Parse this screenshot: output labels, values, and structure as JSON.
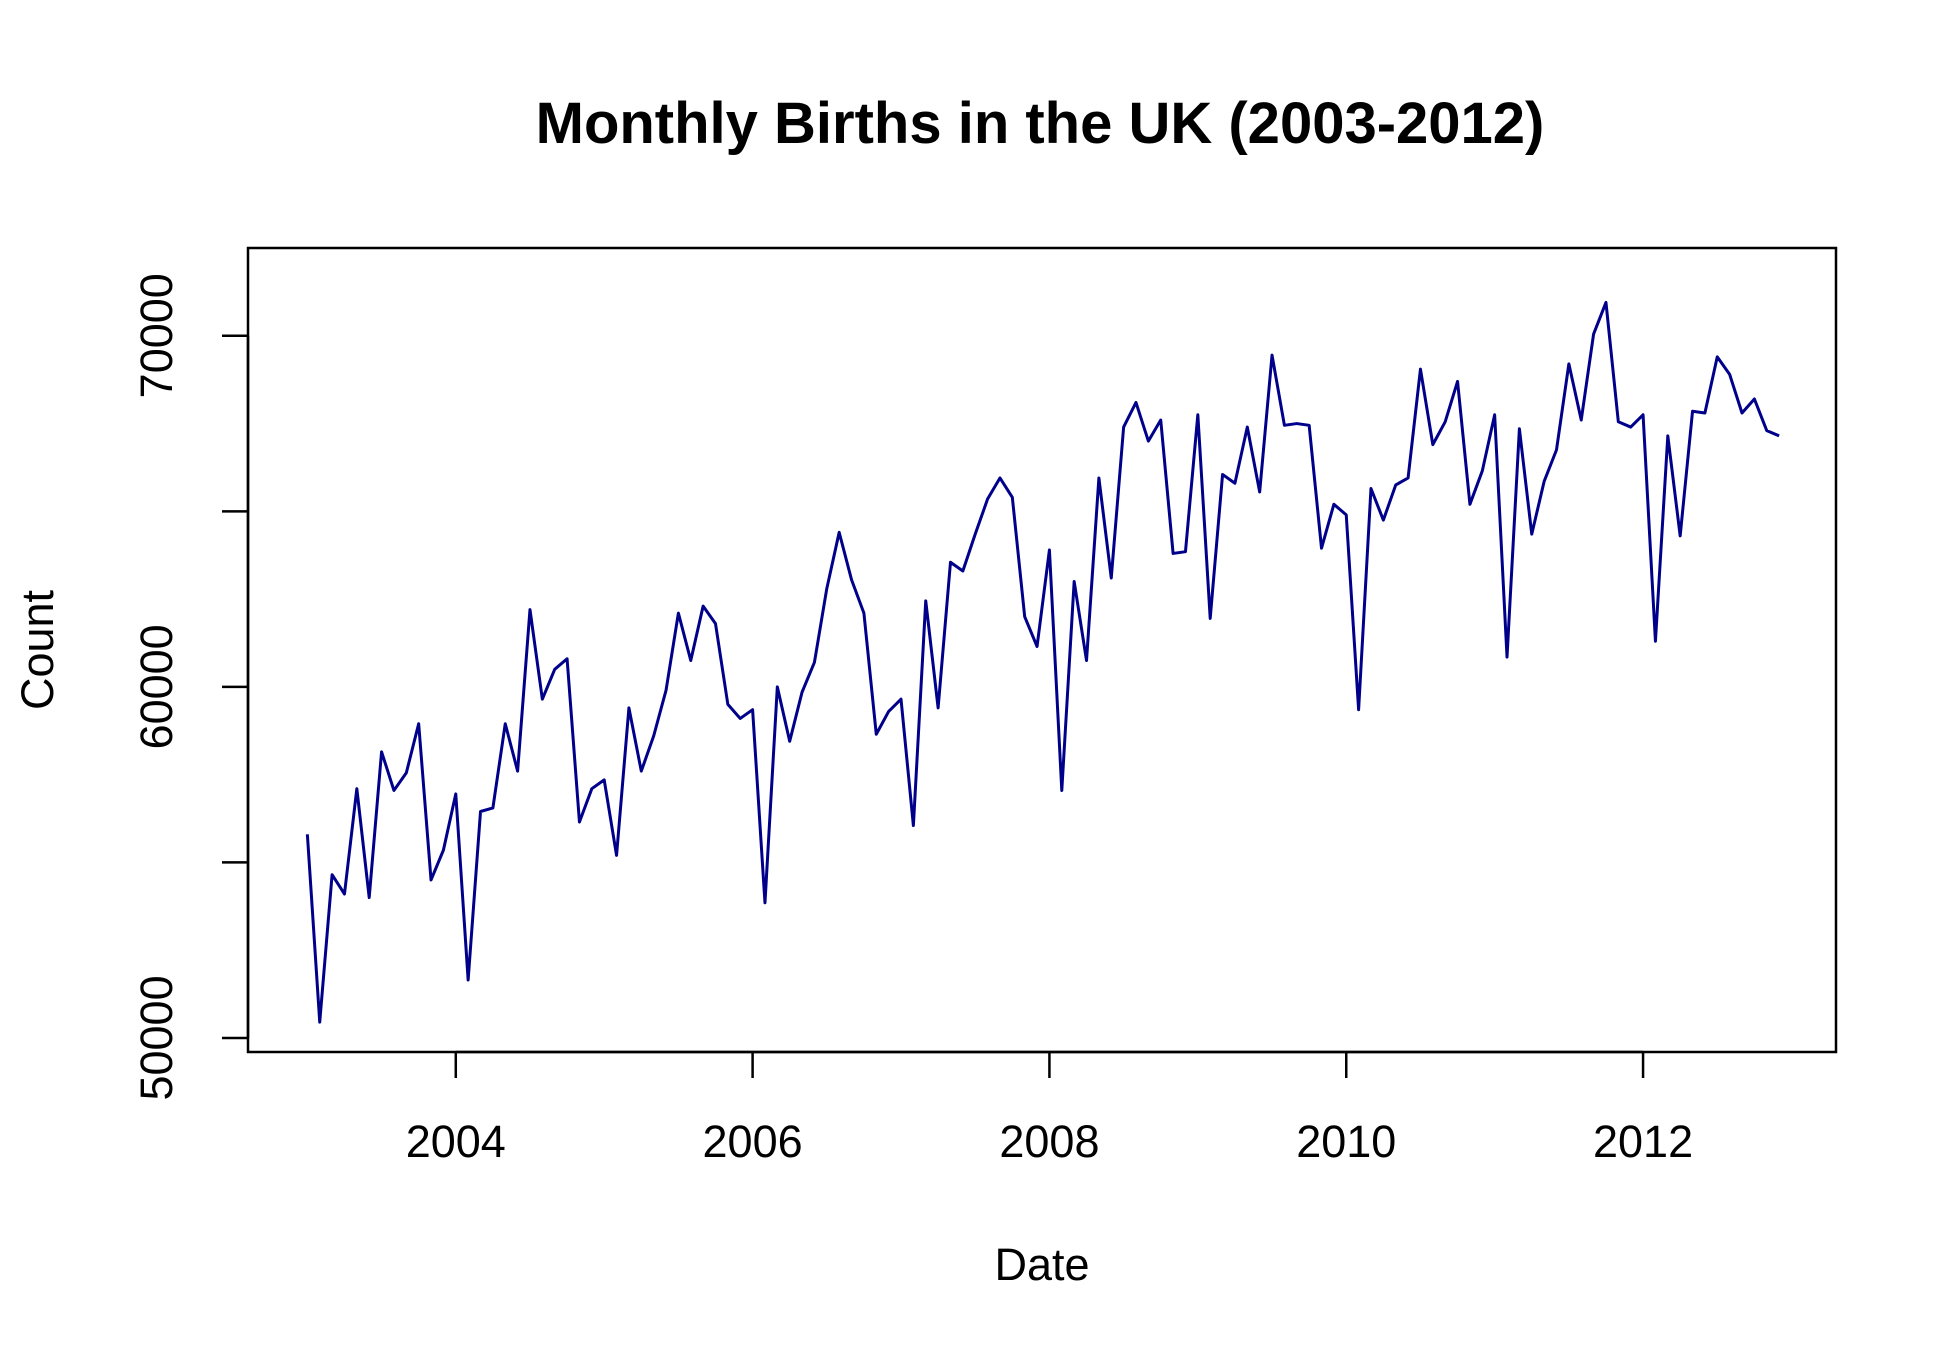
{
  "chart_data": {
    "type": "line",
    "title": "Monthly Births in the UK (2003-2012)",
    "xlabel": "Date",
    "ylabel": "Count",
    "x_ticks": [
      "2004",
      "2006",
      "2008",
      "2010",
      "2012"
    ],
    "y_ticks": [
      "50000",
      "60000",
      "70000"
    ],
    "xlim": [
      2002.6,
      2013.3
    ],
    "ylim": [
      49600,
      72500
    ],
    "grid": false,
    "legend": "none",
    "line_color": "#00008B",
    "series": [
      {
        "start_year": 2003,
        "frequency": "monthly",
        "values": [
          55800,
          50450,
          54650,
          54100,
          57100,
          54000,
          58150,
          57050,
          57550,
          58950,
          54500,
          55350,
          56950,
          51650,
          56450,
          56550,
          58950,
          57600,
          62200,
          59650,
          60500,
          60800,
          56150,
          57100,
          57350,
          55200,
          59400,
          57600,
          58600,
          59900,
          62100,
          60750,
          62300,
          61800,
          59500,
          59100,
          59350,
          53850,
          60000,
          58450,
          59850,
          60700,
          62800,
          64400,
          63050,
          62100,
          58650,
          59300,
          59650,
          56050,
          62450,
          59400,
          63550,
          63300,
          64350,
          65350,
          65950,
          65400,
          62000,
          61150,
          63900,
          57050,
          63000,
          60750,
          65950,
          63100,
          67400,
          68100,
          67000,
          67600,
          63800,
          63850,
          67750,
          61950,
          66050,
          65800,
          67400,
          65550,
          69450,
          67450,
          67500,
          67450,
          63950,
          65200,
          64900,
          59350,
          65650,
          64750,
          65750,
          65950,
          69050,
          66900,
          67550,
          68700,
          65200,
          66150,
          67750,
          60850,
          67350,
          64350,
          65850,
          66750,
          69200,
          67600,
          70050,
          70950,
          67550,
          67400,
          67750,
          61300,
          67150,
          64300,
          67850,
          67800,
          69400,
          68900,
          67800,
          68200,
          67300,
          67150
        ]
      }
    ]
  }
}
